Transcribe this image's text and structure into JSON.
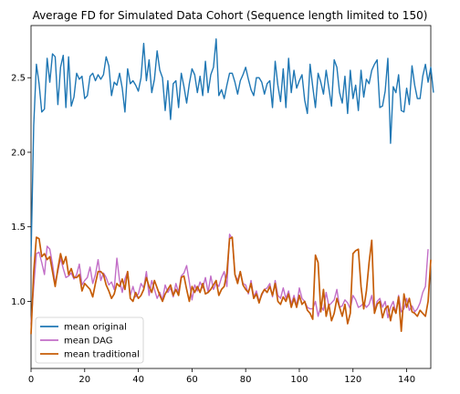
{
  "chart_data": {
    "type": "line",
    "title": "Average FD for Simulated Data Cohort (Sequence length limited to 150)",
    "xlabel": "",
    "ylabel": "",
    "xlim": [
      0,
      149
    ],
    "ylim": [
      0.55,
      2.85
    ],
    "xticks": [
      0,
      20,
      40,
      60,
      80,
      100,
      120,
      140
    ],
    "yticks": [
      1.0,
      1.5,
      2.0,
      2.5
    ],
    "ytick_labels": [
      "1.0",
      "1.5",
      "2.0",
      "2.5"
    ],
    "grid": false,
    "legend_position": "lower-left",
    "series": [
      {
        "name": "mean original",
        "color": "#1f77b4",
        "x_start": 0,
        "values": [
          1.3,
          2.18,
          2.59,
          2.46,
          2.27,
          2.29,
          2.63,
          2.47,
          2.66,
          2.64,
          2.32,
          2.57,
          2.65,
          2.3,
          2.64,
          2.31,
          2.37,
          2.53,
          2.49,
          2.51,
          2.36,
          2.38,
          2.51,
          2.53,
          2.48,
          2.52,
          2.49,
          2.52,
          2.64,
          2.58,
          2.38,
          2.47,
          2.45,
          2.53,
          2.43,
          2.27,
          2.56,
          2.46,
          2.48,
          2.45,
          2.41,
          2.5,
          2.73,
          2.48,
          2.62,
          2.4,
          2.49,
          2.68,
          2.55,
          2.5,
          2.28,
          2.48,
          2.22,
          2.46,
          2.48,
          2.3,
          2.53,
          2.44,
          2.33,
          2.46,
          2.56,
          2.52,
          2.4,
          2.51,
          2.38,
          2.61,
          2.4,
          2.52,
          2.57,
          2.76,
          2.38,
          2.42,
          2.36,
          2.45,
          2.53,
          2.53,
          2.47,
          2.39,
          2.48,
          2.52,
          2.57,
          2.49,
          2.42,
          2.38,
          2.5,
          2.5,
          2.47,
          2.39,
          2.46,
          2.48,
          2.3,
          2.61,
          2.45,
          2.34,
          2.56,
          2.3,
          2.63,
          2.4,
          2.55,
          2.43,
          2.48,
          2.52,
          2.35,
          2.26,
          2.59,
          2.44,
          2.3,
          2.53,
          2.47,
          2.39,
          2.55,
          2.43,
          2.31,
          2.62,
          2.57,
          2.4,
          2.33,
          2.51,
          2.26,
          2.55,
          2.36,
          2.45,
          2.28,
          2.55,
          2.37,
          2.49,
          2.46,
          2.55,
          2.59,
          2.62,
          2.3,
          2.31,
          2.41,
          2.63,
          2.06,
          2.44,
          2.4,
          2.52,
          2.28,
          2.27,
          2.43,
          2.32,
          2.58,
          2.45,
          2.36,
          2.36,
          2.51,
          2.59,
          2.47,
          2.57,
          2.4
        ]
      },
      {
        "name": "mean DAG",
        "color": "#c26ec7",
        "x_start": 0,
        "values": [
          0.85,
          1.1,
          1.32,
          1.33,
          1.26,
          1.18,
          1.37,
          1.35,
          1.25,
          1.12,
          1.2,
          1.29,
          1.22,
          1.16,
          1.17,
          1.19,
          1.15,
          1.18,
          1.25,
          1.11,
          1.14,
          1.16,
          1.23,
          1.12,
          1.18,
          1.28,
          1.14,
          1.19,
          1.16,
          1.11,
          1.13,
          1.08,
          1.29,
          1.14,
          1.06,
          1.15,
          1.2,
          1.04,
          1.1,
          1.03,
          1.05,
          1.12,
          1.09,
          1.2,
          1.04,
          1.14,
          1.08,
          1.02,
          1.06,
          1.01,
          1.11,
          1.06,
          1.09,
          1.03,
          1.12,
          1.06,
          1.17,
          1.19,
          1.24,
          1.13,
          1.01,
          1.11,
          1.07,
          1.13,
          1.09,
          1.16,
          1.06,
          1.17,
          1.08,
          1.12,
          1.1,
          1.16,
          1.2,
          1.1,
          1.45,
          1.42,
          1.18,
          1.14,
          1.2,
          1.12,
          1.11,
          1.05,
          1.14,
          1.03,
          1.07,
          1.0,
          1.04,
          1.08,
          1.09,
          1.12,
          1.03,
          1.14,
          1.04,
          1.02,
          1.09,
          1.02,
          1.07,
          0.98,
          1.04,
          0.97,
          1.09,
          1.02,
          1.0,
          0.96,
          0.95,
          0.95,
          1.0,
          0.9,
          0.97,
          0.94,
          1.06,
          0.97,
          0.99,
          1.01,
          1.08,
          0.96,
          0.97,
          1.01,
          0.99,
          0.95,
          1.04,
          1.01,
          0.96,
          0.97,
          0.99,
          0.96,
          0.98,
          1.04,
          0.93,
          1.0,
          1.02,
          0.96,
          1.0,
          0.89,
          0.96,
          1.0,
          0.92,
          1.04,
          0.93,
          0.95,
          1.02,
          0.94,
          0.97,
          0.93,
          0.95,
          0.99,
          1.06,
          1.1,
          1.35
        ]
      },
      {
        "name": "mean traditional",
        "color": "#c65d07",
        "x_start": 0,
        "values": [
          0.78,
          1.2,
          1.43,
          1.42,
          1.3,
          1.32,
          1.28,
          1.3,
          1.2,
          1.1,
          1.22,
          1.32,
          1.25,
          1.3,
          1.18,
          1.22,
          1.16,
          1.16,
          1.18,
          1.07,
          1.12,
          1.1,
          1.08,
          1.03,
          1.12,
          1.2,
          1.2,
          1.18,
          1.11,
          1.07,
          1.02,
          1.05,
          1.12,
          1.1,
          1.15,
          1.08,
          1.2,
          1.02,
          1.0,
          1.06,
          1.02,
          1.04,
          1.08,
          1.16,
          1.1,
          1.06,
          1.14,
          1.09,
          1.04,
          1.0,
          1.05,
          1.08,
          1.11,
          1.04,
          1.08,
          1.04,
          1.16,
          1.17,
          1.08,
          1.0,
          1.1,
          1.06,
          1.1,
          1.06,
          1.12,
          1.05,
          1.06,
          1.08,
          1.11,
          1.14,
          1.04,
          1.08,
          1.1,
          1.19,
          1.42,
          1.43,
          1.18,
          1.12,
          1.2,
          1.11,
          1.08,
          1.06,
          1.12,
          1.02,
          1.05,
          0.99,
          1.05,
          1.08,
          1.06,
          1.1,
          1.04,
          1.12,
          1.0,
          0.98,
          1.03,
          1.0,
          1.05,
          0.96,
          1.02,
          0.96,
          1.04,
          0.98,
          1.0,
          0.94,
          0.92,
          0.88,
          1.31,
          1.26,
          0.93,
          1.08,
          0.9,
          0.98,
          0.87,
          0.92,
          1.02,
          0.96,
          0.9,
          0.98,
          0.85,
          0.92,
          1.32,
          1.34,
          1.35,
          1.1,
          0.95,
          1.07,
          1.26,
          1.41,
          0.92,
          0.98,
          1.0,
          0.89,
          0.95,
          0.97,
          0.87,
          0.96,
          0.92,
          1.03,
          0.8,
          1.05,
          0.96,
          1.02,
          0.93,
          0.92,
          0.9,
          0.94,
          0.92,
          0.9,
          1.0,
          1.28
        ]
      }
    ]
  }
}
